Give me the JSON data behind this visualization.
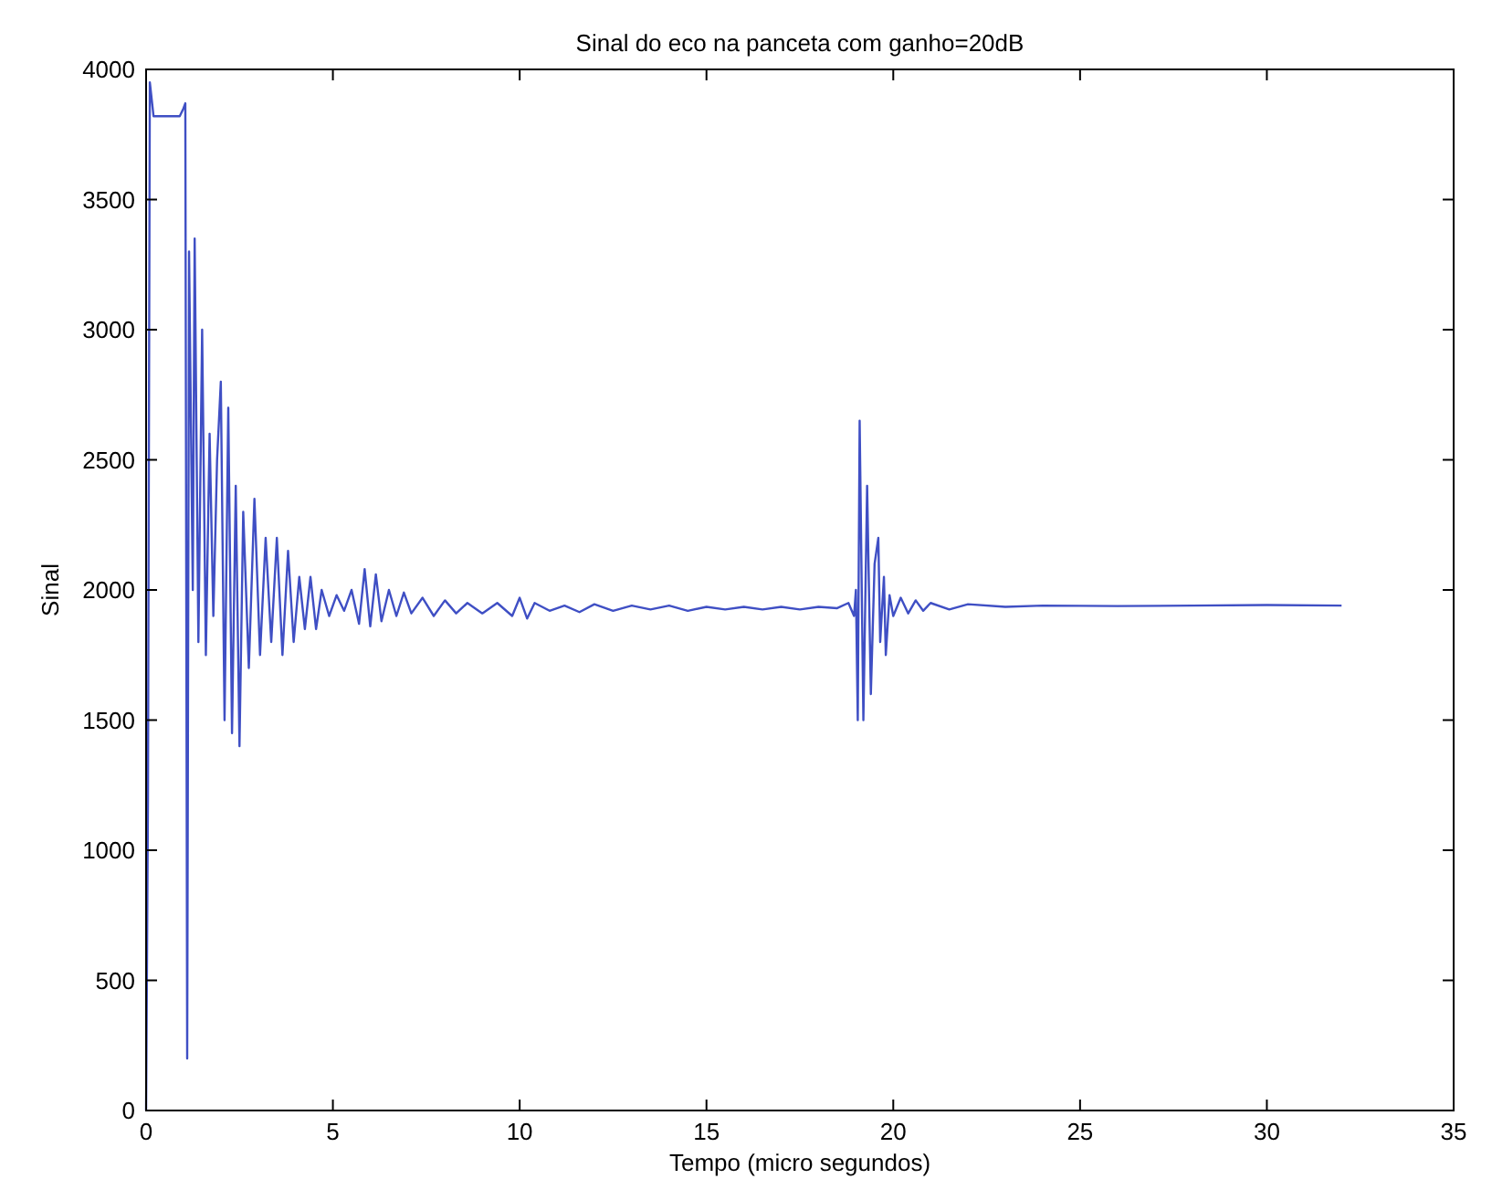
{
  "chart_data": {
    "type": "line",
    "title": "Sinal do eco na panceta com ganho=20dB",
    "xlabel": "Tempo (micro segundos)",
    "ylabel": "Sinal",
    "xlim": [
      0,
      35
    ],
    "xticks": [
      0,
      5,
      10,
      15,
      20,
      25,
      30,
      35
    ],
    "ylim": [
      0,
      4000
    ],
    "yticks": [
      0,
      500,
      1000,
      1500,
      2000,
      2500,
      3000,
      3500,
      4000
    ],
    "grid": false,
    "marker": "none",
    "line_style": "solid",
    "series": [
      {
        "color": "#3f4fc4",
        "x": [
          0,
          0.05,
          0.1,
          0.2,
          0.9,
          1.0,
          1.05,
          1.1,
          1.15,
          1.25,
          1.3,
          1.4,
          1.5,
          1.6,
          1.7,
          1.8,
          1.9,
          2.0,
          2.1,
          2.2,
          2.3,
          2.4,
          2.5,
          2.6,
          2.75,
          2.9,
          3.05,
          3.2,
          3.35,
          3.5,
          3.65,
          3.8,
          3.95,
          4.1,
          4.25,
          4.4,
          4.55,
          4.7,
          4.9,
          5.1,
          5.3,
          5.5,
          5.7,
          5.85,
          6.0,
          6.15,
          6.3,
          6.5,
          6.7,
          6.9,
          7.1,
          7.4,
          7.7,
          8.0,
          8.3,
          8.6,
          9.0,
          9.4,
          9.8,
          10.0,
          10.2,
          10.4,
          10.8,
          11.2,
          11.6,
          12.0,
          12.5,
          13.0,
          13.5,
          14.0,
          14.5,
          15.0,
          15.5,
          16.0,
          16.5,
          17.0,
          17.5,
          18.0,
          18.5,
          18.8,
          18.95,
          19.0,
          19.05,
          19.1,
          19.2,
          19.3,
          19.4,
          19.5,
          19.6,
          19.65,
          19.75,
          19.8,
          19.9,
          20.0,
          20.2,
          20.4,
          20.6,
          20.8,
          21.0,
          21.5,
          22.0,
          23,
          24,
          26,
          28,
          30,
          32
        ],
        "values": [
          0,
          1200,
          3950,
          3820,
          3820,
          3850,
          3870,
          200,
          3300,
          2000,
          3350,
          1800,
          3000,
          1750,
          2600,
          1900,
          2500,
          2800,
          1500,
          2700,
          1450,
          2400,
          1400,
          2300,
          1700,
          2350,
          1750,
          2200,
          1800,
          2200,
          1750,
          2150,
          1800,
          2050,
          1850,
          2050,
          1850,
          2000,
          1900,
          1980,
          1920,
          2000,
          1870,
          2080,
          1860,
          2060,
          1880,
          2000,
          1900,
          1990,
          1910,
          1970,
          1900,
          1960,
          1910,
          1950,
          1910,
          1950,
          1900,
          1970,
          1890,
          1950,
          1920,
          1940,
          1915,
          1945,
          1920,
          1940,
          1925,
          1940,
          1920,
          1935,
          1925,
          1935,
          1925,
          1935,
          1925,
          1935,
          1930,
          1950,
          1900,
          2000,
          1500,
          2650,
          1500,
          2400,
          1600,
          2100,
          2200,
          1800,
          2050,
          1750,
          1980,
          1900,
          1970,
          1910,
          1960,
          1920,
          1950,
          1925,
          1945,
          1935,
          1940,
          1938,
          1940,
          1942,
          1940
        ]
      }
    ]
  }
}
